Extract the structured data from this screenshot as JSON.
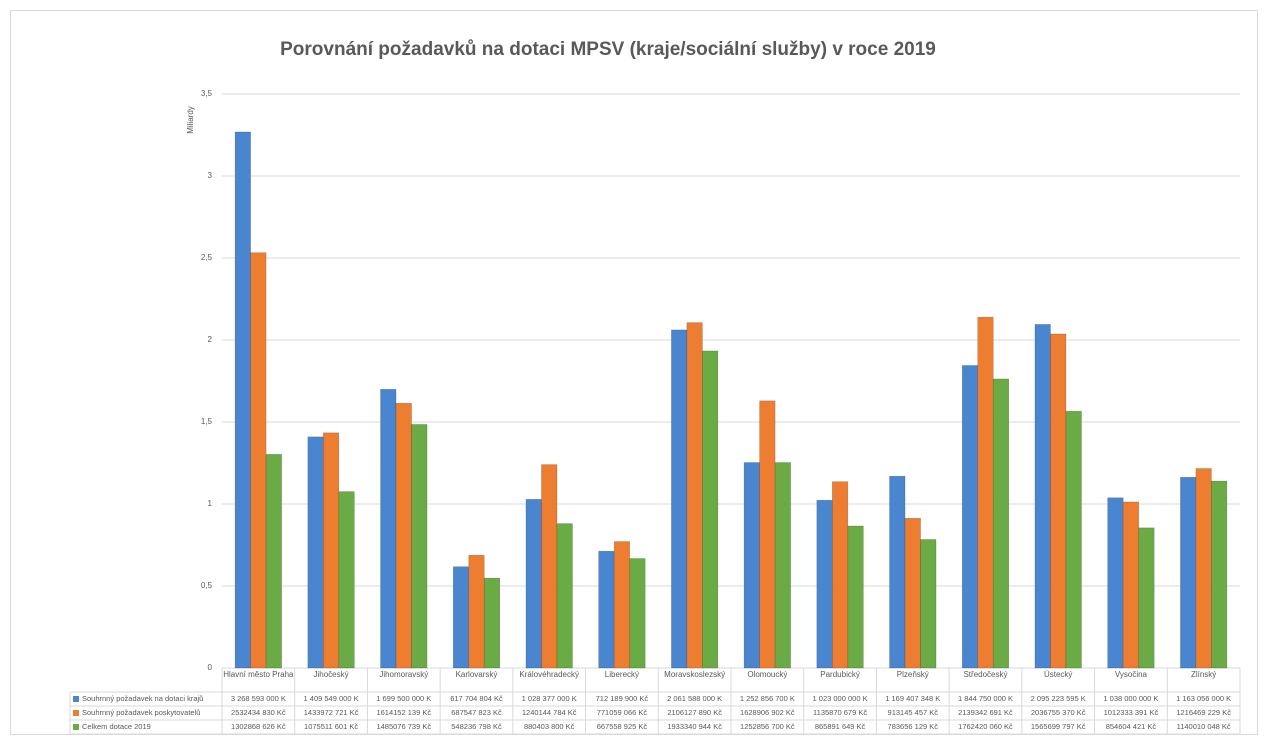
{
  "chart_data": {
    "type": "bar",
    "title": "Porovnání požadavků na dotaci MPSV (kraje/sociální služby) v roce 2019",
    "y_label": "Miliardy",
    "categories": [
      "Hlavní město Praha",
      "Jihočeský",
      "Jihomoravský",
      "Karlovarský",
      "Královéhradecký",
      "Liberecký",
      "Moravskoslezský",
      "Olomoucký",
      "Pardubický",
      "Plzeňský",
      "Středočeský",
      "Ústecký",
      "Vysočina",
      "Zlínský"
    ],
    "series": [
      {
        "name": "Souhrnný požadavek na dotaci krajů",
        "color": "#4a86d0",
        "values": [
          3.268593,
          1.409549,
          1.6995,
          0.617704804,
          1.028377,
          0.7121899,
          2.061588,
          1.2528567,
          1.023,
          1.169407348,
          1.84475,
          2.095223595,
          1.038,
          1.163056
        ],
        "value_labels": [
          "3 268 593 000 K",
          "1 409 549 000 K",
          "1 699 500 000 K",
          "617 704 804 Kč",
          "1 028 377 000 K",
          "712 189 900 Kč",
          "2 061 588 000 K",
          "1 252 856 700 K",
          "1 023 000 000 K",
          "1 169 407 348 K",
          "1 844 750 000 K",
          "2 095 223 595 K",
          "1 038 000 000 K",
          "1 163 056 000 K"
        ]
      },
      {
        "name": "Souhrnný požadavek poskytovatelů",
        "color": "#ed7d31",
        "values": [
          2.53243483,
          1.433972721,
          1.614152139,
          0.687547823,
          1.240144784,
          0.771059066,
          2.10612789,
          1.628906902,
          1.135870679,
          0.913145457,
          2.139342691,
          2.03675537,
          1.012333391,
          1.216469229
        ],
        "value_labels": [
          "2532434 830 Kč",
          "1433972 721 Kč",
          "1614152 139 Kč",
          "687547 823 Kč",
          "1240144 784 Kč",
          "771059 066 Kč",
          "2106127 890 Kč",
          "1628906 902 Kč",
          "1135870 679 Kč",
          "913145 457 Kč",
          "2139342 691 Kč",
          "2036755 370 Kč",
          "1012333 391 Kč",
          "1216469 229 Kč"
        ]
      },
      {
        "name": "Celkem dotace 2019",
        "color": "#6aab45",
        "values": [
          1.302868626,
          1.075511601,
          1.485076739,
          0.548236798,
          0.8804038,
          0.667558925,
          1.933340944,
          1.2528567,
          0.865891649,
          0.783656129,
          1.76242006,
          1.565699797,
          0.854604421,
          1.140010048
        ],
        "value_labels": [
          "1302868 626 Kč",
          "1075511 601 Kč",
          "1485076 739 Kč",
          "548236 798 Kč",
          "880403 800 Kč",
          "667558 925 Kč",
          "1933340 944 Kč",
          "1252856 700 Kč",
          "865891 649 Kč",
          "783656 129 Kč",
          "1762420 060 Kč",
          "1565699 797 Kč",
          "854604 421 Kč",
          "1140010 048 Kč"
        ]
      }
    ],
    "ylim": [
      0,
      3.5
    ],
    "yticks": [
      0,
      {
        "value": 0.5,
        "label": "0,5"
      },
      1,
      {
        "value": 1.5,
        "label": "1,5"
      },
      2,
      {
        "value": 2.5,
        "label": "2,5"
      },
      3,
      {
        "value": 3.5,
        "label": "3,5"
      }
    ],
    "grid": true
  }
}
